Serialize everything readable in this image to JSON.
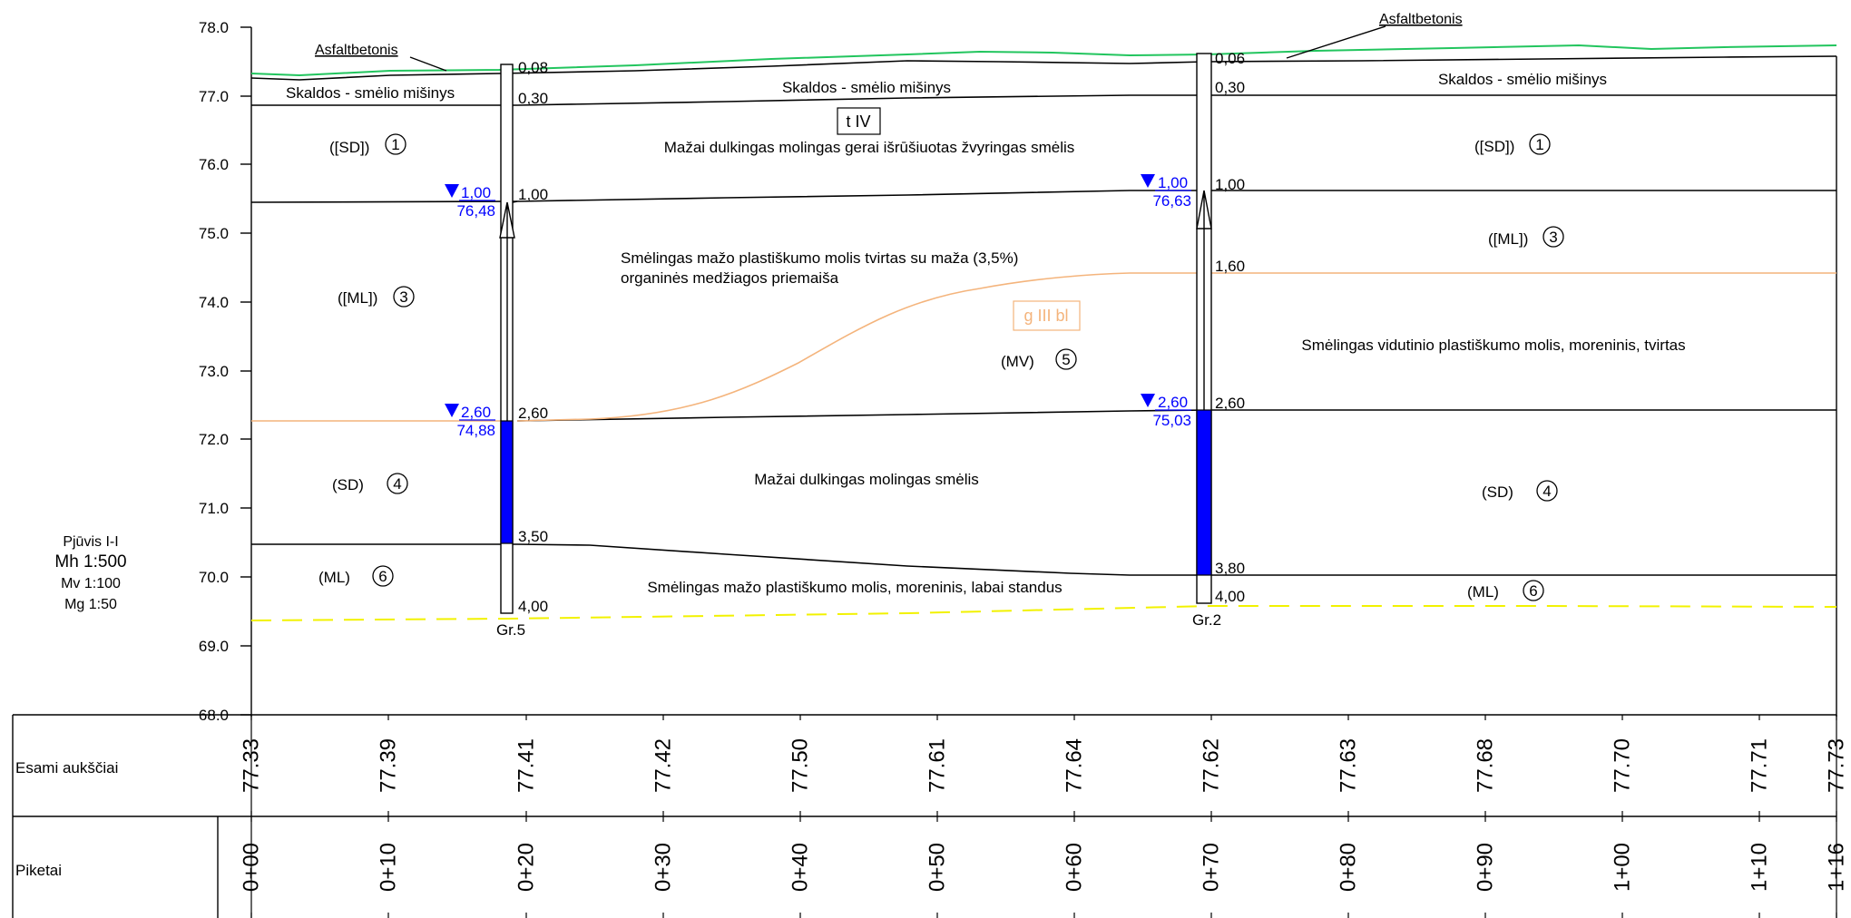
{
  "title_block": {
    "section": "Pjūvis I-I",
    "mh": "Mh  1:500",
    "mv": "Mv 1:100",
    "mg": "Mg 1:50"
  },
  "elevation_axis": {
    "ticks": [
      "78.0",
      "77.0",
      "76.0",
      "75.0",
      "74.0",
      "73.0",
      "72.0",
      "71.0",
      "70.0",
      "69.0",
      "68.0"
    ]
  },
  "surface_labels": {
    "asphalt_left": "Asfaltbetonis",
    "asphalt_right": "Asfaltbetonis"
  },
  "layer_labels": {
    "gravel_left": "Skaldos - smėlio mišinys",
    "gravel_mid": "Skaldos - smėlio mišinys",
    "gravel_right": "Skaldos - smėlio mišinys",
    "tIV": "t IV",
    "sand_gravel": "Mažai dulkingas molingas gerai išrūšiuotas žvyringas smėlis",
    "clay_line1": "Smėlingas mažo plastiškumo molis tvirtas su maža (3,5%)",
    "clay_line2": "organinės medžiagos priemaiša",
    "gIIIbl": "g III bl",
    "moraine_right": "Smėlingas vidutinio plastiškumo molis, moreninis, tvirtas",
    "silty_sand": "Mažai dulkingas molingas smėlis",
    "moraine_bottom": "Smėlingas mažo plastiškumo molis, moreninis,  labai standus"
  },
  "soil_codes": {
    "sd_left": "([SD])",
    "n1_left": "1",
    "sd_right": "([SD])",
    "n1_right": "1",
    "ml_left": "([ML])",
    "n3_left": "3",
    "ml_right": "([ML])",
    "n3_right": "3",
    "mv": "(MV)",
    "n5": "5",
    "sd4_left": "(SD)",
    "n4_left": "4",
    "sd4_right": "(SD)",
    "n4_right": "4",
    "ml6_left": "(ML)",
    "n6_left": "6",
    "ml6_right": "(ML)",
    "n6_right": "6"
  },
  "boreholes": [
    {
      "name": "Gr.5",
      "depths": [
        "0,08",
        "0,30",
        "1,00",
        "2,60",
        "3,50",
        "4,00"
      ],
      "water_levels": [
        {
          "depth": "1,00",
          "elevation": "76,48"
        },
        {
          "depth": "2,60",
          "elevation": "74,88"
        }
      ]
    },
    {
      "name": "Gr.2",
      "depths": [
        "0,06",
        "0,30",
        "1,00",
        "1,60",
        "2,60",
        "3,80",
        "4,00"
      ],
      "water_levels": [
        {
          "depth": "1,00",
          "elevation": "76,63"
        },
        {
          "depth": "2,60",
          "elevation": "75,03"
        }
      ]
    }
  ],
  "bottom_table": {
    "row1_label": "Esami aukščiai",
    "row2_label": "Piketai",
    "elevations": [
      "77.33",
      "77.39",
      "77.41",
      "77.42",
      "77.50",
      "77.61",
      "77.64",
      "77.62",
      "77.63",
      "77.68",
      "77.70",
      "77.71",
      "77.73"
    ],
    "pickets": [
      "0+00",
      "0+10",
      "0+20",
      "0+30",
      "0+40",
      "0+50",
      "0+60",
      "0+70",
      "0+80",
      "0+90",
      "1+00",
      "1+10",
      "1+16"
    ]
  },
  "colors": {
    "ground_surface": "#22c55e",
    "water": "#0000ff",
    "orange_boundary": "#f4b47c",
    "dashed_yellow": "#f2f200",
    "line": "#000000"
  }
}
